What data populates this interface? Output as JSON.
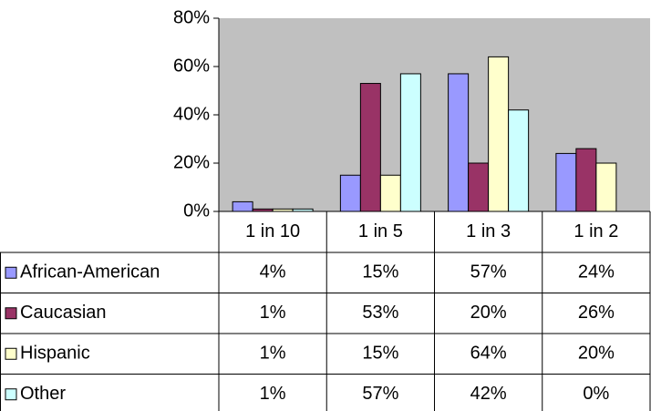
{
  "chart_data": {
    "type": "bar",
    "categories": [
      "1 in 10",
      "1 in 5",
      "1 in 3",
      "1 in 2"
    ],
    "series": [
      {
        "name": "African-American",
        "color": "#9999ff",
        "values": [
          4,
          15,
          57,
          24
        ],
        "value_labels": [
          "4%",
          "15%",
          "57%",
          "24%"
        ]
      },
      {
        "name": "Caucasian",
        "color": "#993366",
        "values": [
          1,
          53,
          20,
          26
        ],
        "value_labels": [
          "1%",
          "53%",
          "20%",
          "26%"
        ]
      },
      {
        "name": "Hispanic",
        "color": "#ffffcc",
        "values": [
          1,
          15,
          64,
          20
        ],
        "value_labels": [
          "1%",
          "15%",
          "64%",
          "20%"
        ]
      },
      {
        "name": "Other",
        "color": "#ccffff",
        "values": [
          1,
          57,
          42,
          0
        ],
        "value_labels": [
          "1%",
          "57%",
          "42%",
          "0%"
        ]
      }
    ],
    "ylim": [
      0,
      80
    ],
    "yticks": [
      {
        "value": 0,
        "label": "0%"
      },
      {
        "value": 20,
        "label": "20%"
      },
      {
        "value": 40,
        "label": "40%"
      },
      {
        "value": 60,
        "label": "60%"
      },
      {
        "value": 80,
        "label": "80%"
      }
    ],
    "plot_background": "#c0c0c0"
  }
}
